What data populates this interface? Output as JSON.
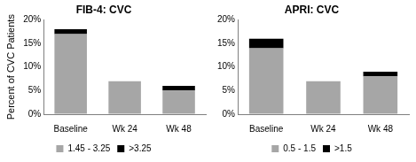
{
  "chart_data": [
    {
      "type": "bar",
      "title": "FIB-4: CVC",
      "y_label": "Percent of CVC Patients",
      "categories": [
        "Baseline",
        "Wk 24",
        "Wk 48"
      ],
      "series": [
        {
          "name": "1.45 - 3.25",
          "color": "#a6a6a6",
          "values": [
            17,
            7,
            5
          ]
        },
        {
          "name": ">3.25",
          "color": "#000000",
          "values": [
            1,
            0,
            1
          ]
        }
      ],
      "ylim": [
        0,
        20
      ],
      "yticks": [
        {
          "value": 0,
          "label": "0%"
        },
        {
          "value": 5,
          "label": "5%"
        },
        {
          "value": 10,
          "label": "10%"
        },
        {
          "value": 15,
          "label": "15%"
        },
        {
          "value": 20,
          "label": "20%"
        }
      ],
      "stacked": true,
      "grid": false,
      "legend": "bottom"
    },
    {
      "type": "bar",
      "title": "APRI: CVC",
      "categories": [
        "Baseline",
        "Wk 24",
        "Wk 48"
      ],
      "series": [
        {
          "name": "0.5 - 1.5",
          "color": "#a6a6a6",
          "values": [
            14,
            7,
            8
          ]
        },
        {
          "name": ">1.5",
          "color": "#000000",
          "values": [
            2,
            0,
            1
          ]
        }
      ],
      "ylim": [
        0,
        20
      ],
      "yticks": [
        {
          "value": 0,
          "label": "0%"
        },
        {
          "value": 5,
          "label": "5%"
        },
        {
          "value": 10,
          "label": "10%"
        },
        {
          "value": 15,
          "label": "15%"
        },
        {
          "value": 20,
          "label": "20%"
        }
      ],
      "stacked": true,
      "grid": false,
      "legend": "bottom"
    }
  ]
}
